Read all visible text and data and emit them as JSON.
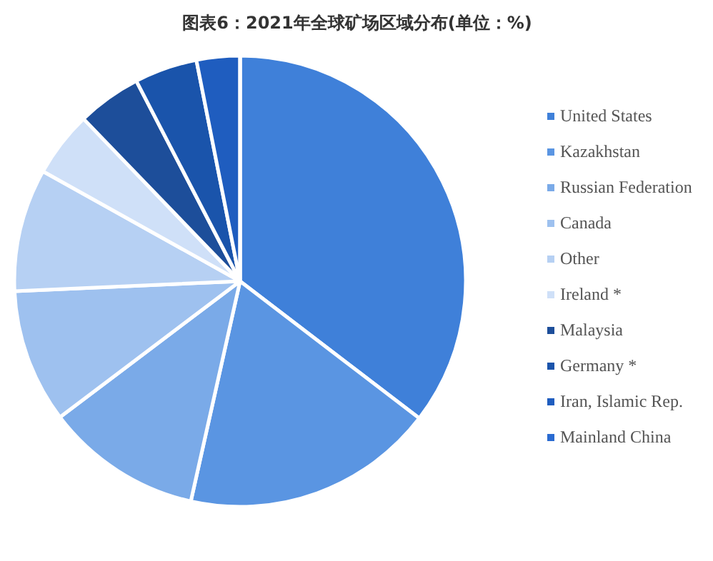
{
  "chart_data": {
    "type": "pie",
    "title": "图表6：2021年全球矿场区域分布(单位：%)",
    "categories": [
      "United States",
      "Kazakhstan",
      "Russian Federation",
      "Canada",
      "Other",
      "Ireland *",
      "Malaysia",
      "Germany *",
      "Iran, Islamic Rep.",
      "Mainland China"
    ],
    "values": [
      35.4,
      18.1,
      11.2,
      9.6,
      8.8,
      4.7,
      4.6,
      4.5,
      3.1,
      0
    ],
    "colors": [
      "#3f80d9",
      "#5a95e2",
      "#7aaae8",
      "#9ec1ef",
      "#b6d0f3",
      "#cfe0f8",
      "#1d4e9a",
      "#1a54ab",
      "#1f5dbf",
      "#2a6bd1"
    ],
    "legend": "right"
  }
}
